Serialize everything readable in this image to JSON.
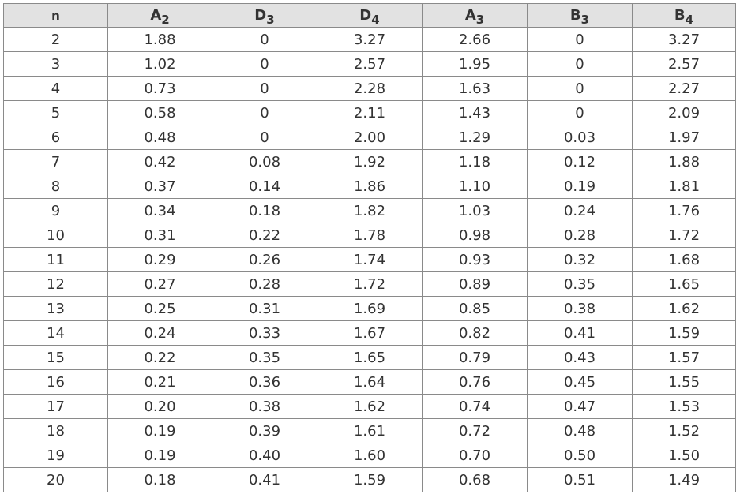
{
  "table": {
    "headers": [
      {
        "main": "n",
        "sub": ""
      },
      {
        "main": "A",
        "sub": "2"
      },
      {
        "main": "D",
        "sub": "3"
      },
      {
        "main": "D",
        "sub": "4"
      },
      {
        "main": "A",
        "sub": "3"
      },
      {
        "main": "B",
        "sub": "3"
      },
      {
        "main": "B",
        "sub": "4"
      }
    ],
    "rows": [
      [
        "2",
        "1.88",
        "0",
        "3.27",
        "2.66",
        "0",
        "3.27"
      ],
      [
        "3",
        "1.02",
        "0",
        "2.57",
        "1.95",
        "0",
        "2.57"
      ],
      [
        "4",
        "0.73",
        "0",
        "2.28",
        "1.63",
        "0",
        "2.27"
      ],
      [
        "5",
        "0.58",
        "0",
        "2.11",
        "1.43",
        "0",
        "2.09"
      ],
      [
        "6",
        "0.48",
        "0",
        "2.00",
        "1.29",
        "0.03",
        "1.97"
      ],
      [
        "7",
        "0.42",
        "0.08",
        "1.92",
        "1.18",
        "0.12",
        "1.88"
      ],
      [
        "8",
        "0.37",
        "0.14",
        "1.86",
        "1.10",
        "0.19",
        "1.81"
      ],
      [
        "9",
        "0.34",
        "0.18",
        "1.82",
        "1.03",
        "0.24",
        "1.76"
      ],
      [
        "10",
        "0.31",
        "0.22",
        "1.78",
        "0.98",
        "0.28",
        "1.72"
      ],
      [
        "11",
        "0.29",
        "0.26",
        "1.74",
        "0.93",
        "0.32",
        "1.68"
      ],
      [
        "12",
        "0.27",
        "0.28",
        "1.72",
        "0.89",
        "0.35",
        "1.65"
      ],
      [
        "13",
        "0.25",
        "0.31",
        "1.69",
        "0.85",
        "0.38",
        "1.62"
      ],
      [
        "14",
        "0.24",
        "0.33",
        "1.67",
        "0.82",
        "0.41",
        "1.59"
      ],
      [
        "15",
        "0.22",
        "0.35",
        "1.65",
        "0.79",
        "0.43",
        "1.57"
      ],
      [
        "16",
        "0.21",
        "0.36",
        "1.64",
        "0.76",
        "0.45",
        "1.55"
      ],
      [
        "17",
        "0.20",
        "0.38",
        "1.62",
        "0.74",
        "0.47",
        "1.53"
      ],
      [
        "18",
        "0.19",
        "0.39",
        "1.61",
        "0.72",
        "0.48",
        "1.52"
      ],
      [
        "19",
        "0.19",
        "0.40",
        "1.60",
        "0.70",
        "0.50",
        "1.50"
      ],
      [
        "20",
        "0.18",
        "0.41",
        "1.59",
        "0.68",
        "0.51",
        "1.49"
      ]
    ]
  }
}
